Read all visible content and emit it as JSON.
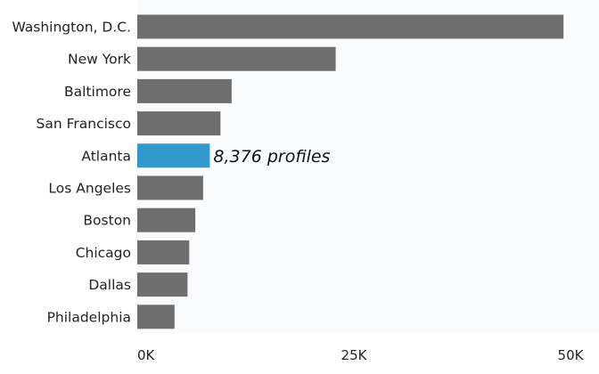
{
  "chart_data": {
    "type": "bar",
    "orientation": "horizontal",
    "title": "",
    "xlabel": "",
    "ylabel": "",
    "categories": [
      "Washington, D.C.",
      "New York",
      "Baltimore",
      "San Francisco",
      "Atlanta",
      "Los Angeles",
      "Boston",
      "Chicago",
      "Dallas",
      "Philadelphia"
    ],
    "values": [
      49200,
      22900,
      10900,
      9600,
      8376,
      7600,
      6700,
      6000,
      5800,
      4300
    ],
    "highlight_index": 4,
    "data_label": "8,376 profiles",
    "xlim": [
      0,
      50000
    ],
    "xticks": [
      0,
      25000,
      50000
    ],
    "xtick_labels": [
      "0K",
      "25K",
      "50K"
    ],
    "grid": false,
    "colors": {
      "bar": "#6e6e6e",
      "highlight": "#3399cc",
      "panel": "#fafbfd"
    }
  }
}
